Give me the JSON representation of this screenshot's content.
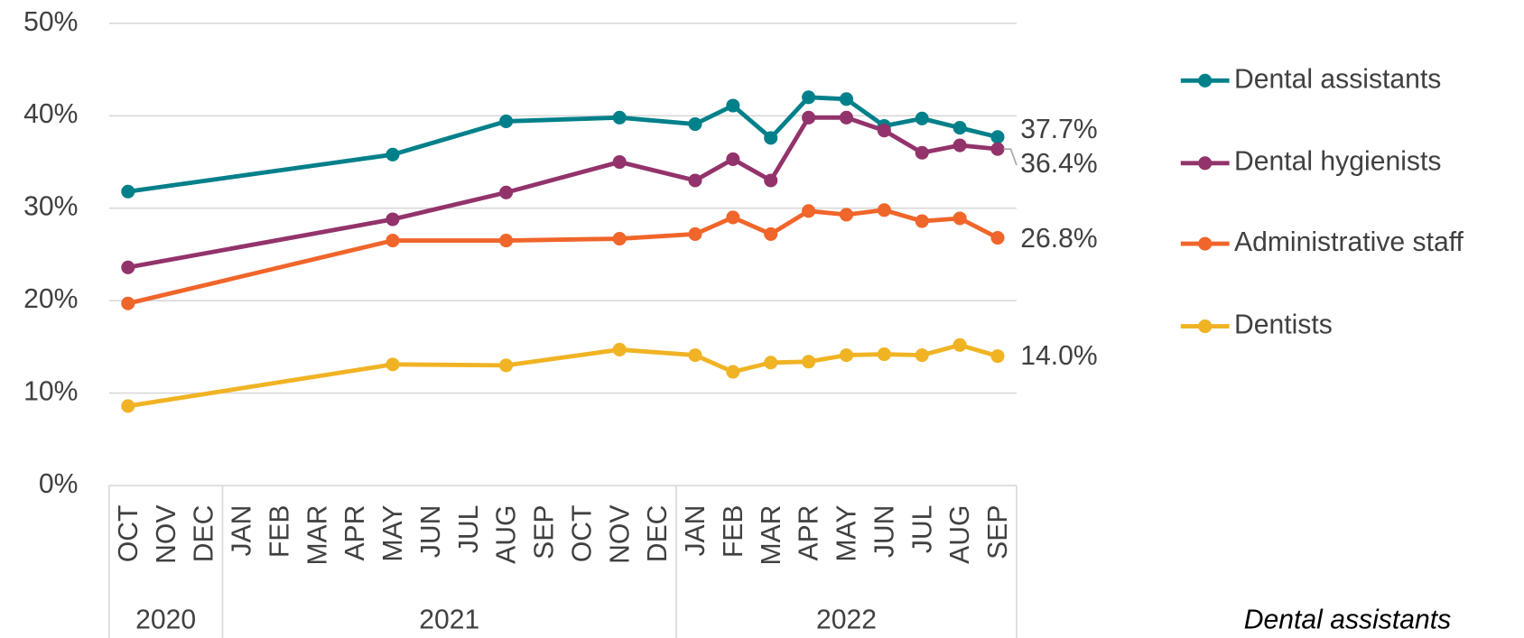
{
  "chart_data": {
    "type": "line",
    "categories": [
      "OCT",
      "NOV",
      "DEC",
      "JAN",
      "FEB",
      "MAR",
      "APR",
      "MAY",
      "JUN",
      "JUL",
      "AUG",
      "SEP",
      "OCT",
      "NOV",
      "DEC",
      "JAN",
      "FEB",
      "MAR",
      "APR",
      "MAY",
      "JUN",
      "JUL",
      "AUG",
      "SEP"
    ],
    "category_groups": [
      {
        "label": "2020",
        "count": 3
      },
      {
        "label": "2021",
        "count": 12
      },
      {
        "label": "2022",
        "count": 9
      }
    ],
    "series": [
      {
        "name": "Dental assistants",
        "color": "#00808a",
        "values": [
          31.8,
          null,
          null,
          null,
          null,
          null,
          null,
          35.8,
          null,
          null,
          39.4,
          null,
          null,
          39.8,
          null,
          39.1,
          41.1,
          37.6,
          42.0,
          41.8,
          38.9,
          39.7,
          38.7,
          37.7
        ],
        "value_labels": [
          null,
          null,
          null,
          null,
          null,
          null,
          null,
          null,
          null,
          null,
          null,
          null,
          null,
          null,
          null,
          null,
          null,
          null,
          null,
          null,
          null,
          null,
          null,
          "37.7%"
        ]
      },
      {
        "name": "Dental hygienists",
        "color": "#93336b",
        "values": [
          23.6,
          null,
          null,
          null,
          null,
          null,
          null,
          28.8,
          null,
          null,
          31.7,
          null,
          null,
          35.0,
          null,
          33.0,
          35.3,
          33.0,
          39.8,
          39.8,
          38.4,
          36.0,
          36.8,
          36.4
        ],
        "value_labels": [
          null,
          null,
          null,
          null,
          null,
          null,
          null,
          null,
          null,
          null,
          null,
          null,
          null,
          null,
          null,
          null,
          null,
          null,
          null,
          null,
          null,
          null,
          null,
          "36.4%"
        ]
      },
      {
        "name": "Administrative staff",
        "color": "#f0652a",
        "values": [
          19.7,
          null,
          null,
          null,
          null,
          null,
          null,
          26.5,
          null,
          null,
          26.5,
          null,
          null,
          26.7,
          null,
          27.2,
          29.0,
          27.2,
          29.7,
          29.3,
          29.8,
          28.6,
          28.9,
          26.8
        ],
        "value_labels": [
          null,
          null,
          null,
          null,
          null,
          null,
          null,
          null,
          null,
          null,
          null,
          null,
          null,
          null,
          null,
          null,
          null,
          null,
          null,
          null,
          null,
          null,
          null,
          "26.8%"
        ]
      },
      {
        "name": "Dentists",
        "color": "#f0b323",
        "values": [
          8.6,
          null,
          null,
          null,
          null,
          null,
          null,
          13.1,
          null,
          null,
          13.0,
          null,
          null,
          14.7,
          null,
          14.1,
          12.3,
          13.3,
          13.4,
          14.1,
          14.2,
          14.1,
          15.2,
          14.0
        ],
        "value_labels": [
          null,
          null,
          null,
          null,
          null,
          null,
          null,
          null,
          null,
          null,
          null,
          null,
          null,
          null,
          null,
          null,
          null,
          null,
          null,
          null,
          null,
          null,
          null,
          "14.0%"
        ]
      }
    ],
    "connect_gaps": true,
    "ylim": [
      0,
      50
    ],
    "yticks": [
      {
        "value": 0,
        "label": "0%"
      },
      {
        "value": 10,
        "label": "10%"
      },
      {
        "value": 20,
        "label": "20%"
      },
      {
        "value": 30,
        "label": "30%"
      },
      {
        "value": 40,
        "label": "40%"
      },
      {
        "value": 50,
        "label": "50%"
      }
    ],
    "grid": true,
    "legend": "right",
    "footnote": "Dental assistants"
  }
}
